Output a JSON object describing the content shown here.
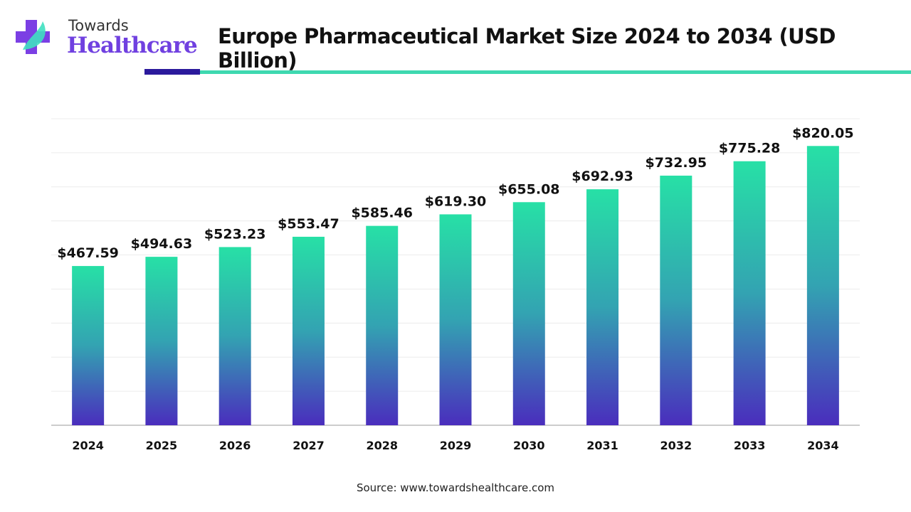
{
  "logo": {
    "top": "Towards",
    "bottom": "Healthcare"
  },
  "header": {
    "title": "Europe Pharmaceutical Market Size 2024 to 2034 (USD Billion)"
  },
  "footer": {
    "source": "Source: www.towardshealthcare.com"
  },
  "colors": {
    "bar_top": "#27e0a6",
    "bar_bottom": "#4a2dbd",
    "accent_dark": "#2b1a9c",
    "accent_teal": "#3ed8b0"
  },
  "chart_data": {
    "type": "bar",
    "title": "Europe Pharmaceutical Market Size 2024 to 2034 (USD Billion)",
    "categories": [
      "2024",
      "2025",
      "2026",
      "2027",
      "2028",
      "2029",
      "2030",
      "2031",
      "2032",
      "2033",
      "2034"
    ],
    "values": [
      467.59,
      494.63,
      523.23,
      553.47,
      585.46,
      619.3,
      655.08,
      692.93,
      732.95,
      775.28,
      820.05
    ],
    "data_labels": [
      "$467.59",
      "$494.63",
      "$523.23",
      "$553.47",
      "$585.46",
      "$619.30",
      "$655.08",
      "$692.93",
      "$732.95",
      "$775.28",
      "$820.05"
    ],
    "xlabel": "",
    "ylabel": "",
    "ylim": [
      0,
      900
    ],
    "grid": true,
    "y_axis_labels_shown": false
  }
}
